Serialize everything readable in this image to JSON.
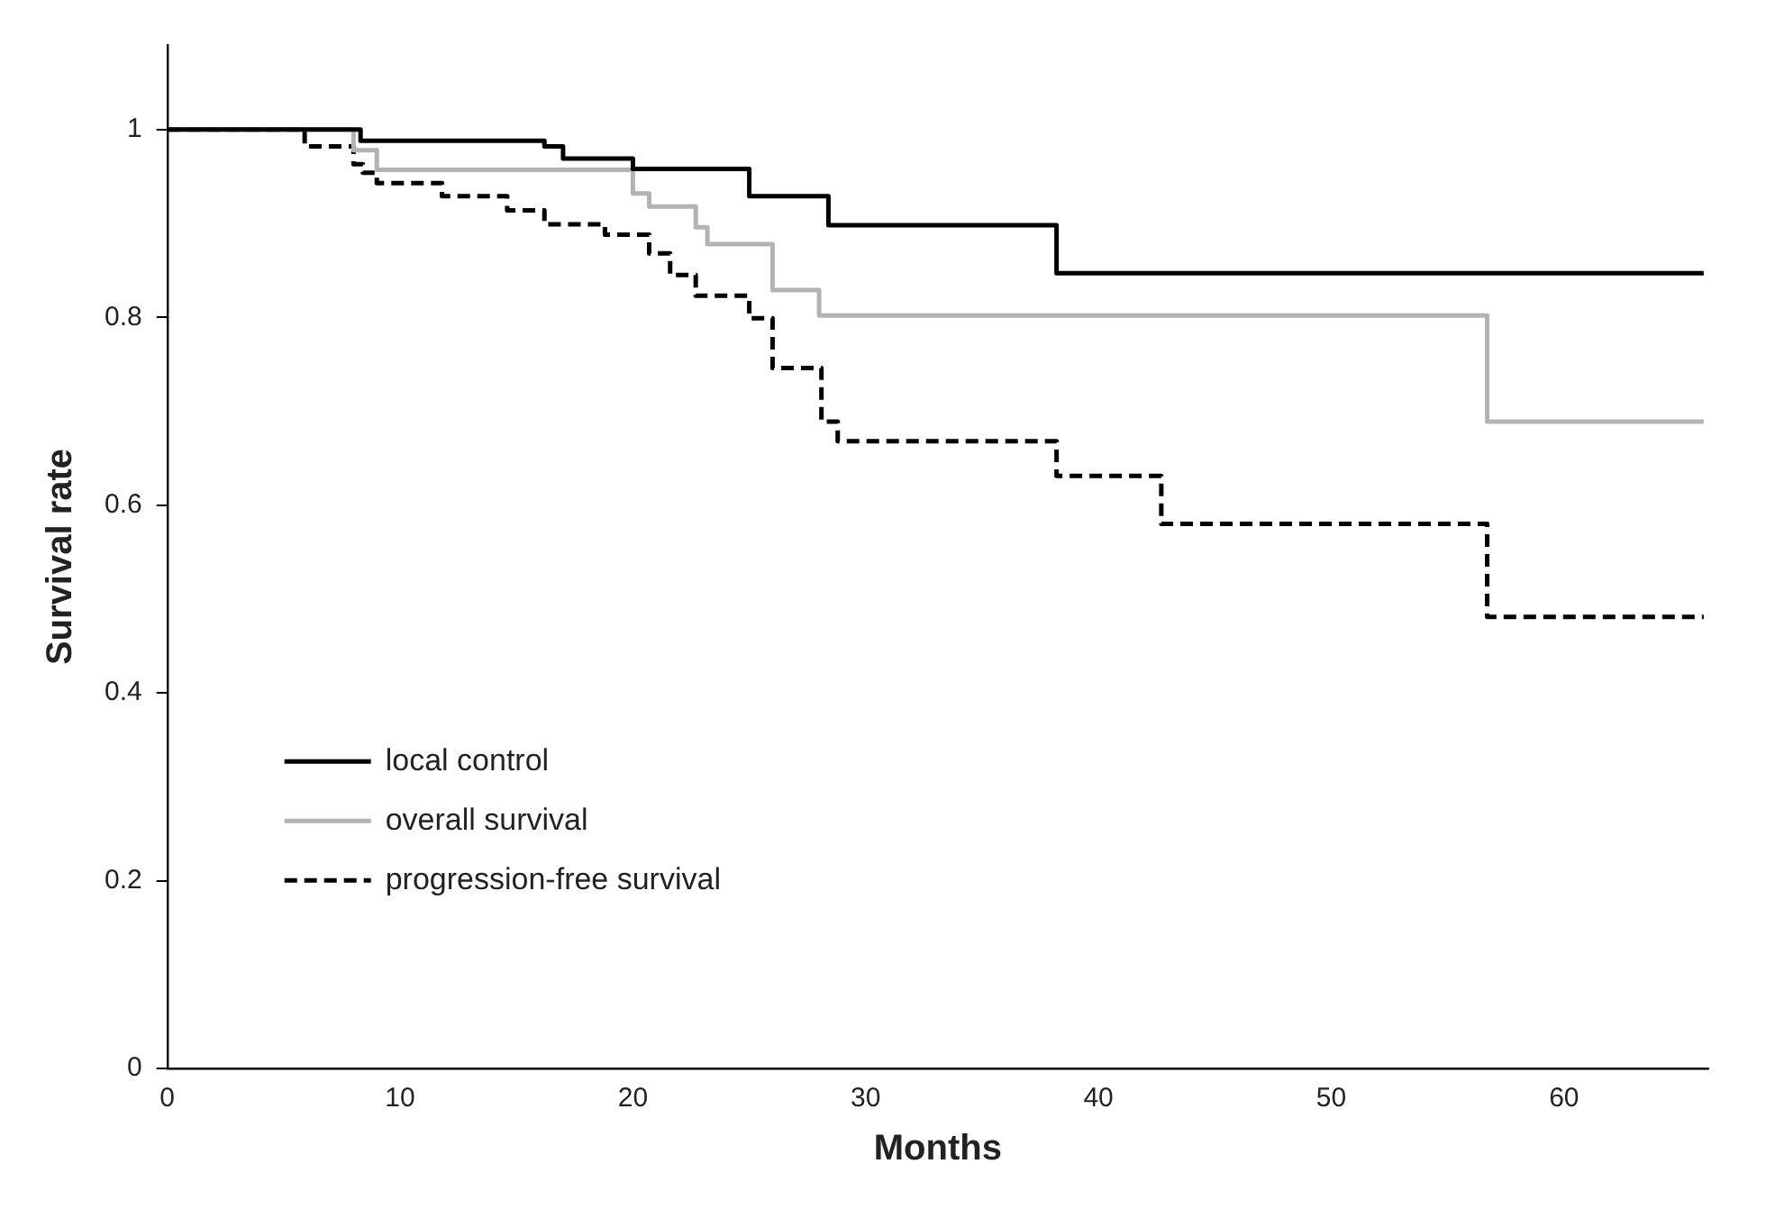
{
  "chart_data": {
    "type": "step",
    "xlabel": "Months",
    "ylabel": "Survival rate",
    "xlim": [
      0,
      66.2
    ],
    "xticks": [
      0,
      10,
      20,
      30,
      40,
      50,
      60
    ],
    "ylim": [
      0,
      1.09
    ],
    "yticks": [
      0,
      0.2,
      0.4,
      0.6,
      0.8,
      1
    ],
    "grid": false,
    "legend": "bottom left",
    "marker": "none",
    "series": [
      {
        "name": "local control",
        "color": "#000000",
        "line_style": "solid",
        "x": [
          0,
          8.3,
          16.2,
          17,
          20,
          25,
          28.4,
          38.2,
          66
        ],
        "values": [
          1,
          0.988,
          0.982,
          0.969,
          0.958,
          0.929,
          0.898,
          0.847,
          0.847
        ]
      },
      {
        "name": "overall survival",
        "color": "#b3b3b3",
        "line_style": "solid",
        "x": [
          0,
          8,
          9,
          20,
          20.7,
          22.7,
          23.2,
          26,
          28,
          56.7,
          66
        ],
        "values": [
          1,
          0.978,
          0.957,
          0.932,
          0.918,
          0.896,
          0.878,
          0.829,
          0.802,
          0.689,
          0.689
        ]
      },
      {
        "name": "progression-free survival",
        "color": "#000000",
        "line_style": "dashed",
        "x": [
          0,
          5.9,
          8,
          8.4,
          9,
          11.8,
          14.6,
          16.2,
          18.8,
          20.7,
          21.6,
          22.7,
          25,
          26,
          28.1,
          28.8,
          38.2,
          42.7,
          56.7,
          66
        ],
        "values": [
          1,
          0.982,
          0.963,
          0.954,
          0.943,
          0.929,
          0.914,
          0.899,
          0.888,
          0.868,
          0.845,
          0.823,
          0.799,
          0.746,
          0.689,
          0.668,
          0.631,
          0.58,
          0.481,
          0.481
        ]
      }
    ]
  }
}
